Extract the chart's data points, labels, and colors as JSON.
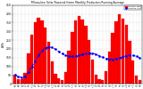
{
  "title": "Milwaukee Solar Powered Home Monthly Production Running Average",
  "ylabel": "kWh",
  "background_color": "#ffffff",
  "bar_color": "#ff0000",
  "line_color": "#0000ff",
  "grid_color": "#bbbbbb",
  "months": [
    "Nov\n'08",
    "Dec\n'08",
    "Jan\n'09",
    "Feb\n'09",
    "Mar\n'09",
    "Apr\n'09",
    "May\n'09",
    "Jun\n'09",
    "Jul\n'09",
    "Aug\n'09",
    "Sep\n'09",
    "Oct\n'09",
    "Nov\n'09",
    "Dec\n'09",
    "Jan\n'10",
    "Feb\n'10",
    "Mar\n'10",
    "Apr\n'10",
    "May\n'10",
    "Jun\n'10",
    "Jul\n'10",
    "Aug\n'10",
    "Sep\n'10",
    "Oct\n'10",
    "Nov\n'10",
    "Dec\n'10",
    "Jan\n'11",
    "Feb\n'11",
    "Mar\n'11",
    "Apr\n'11",
    "May\n'11",
    "Jun\n'11",
    "Jul\n'11",
    "Aug\n'11",
    "Sep\n'11",
    "Oct\n'11",
    "Nov\n'11",
    "Dec\n'11"
  ],
  "bar_values": [
    55,
    28,
    25,
    62,
    175,
    280,
    350,
    380,
    360,
    320,
    240,
    130,
    60,
    30,
    22,
    70,
    190,
    295,
    365,
    390,
    370,
    330,
    250,
    140,
    55,
    28,
    20,
    75,
    185,
    290,
    355,
    400,
    375,
    335,
    245,
    135,
    50,
    22
  ],
  "running_avg": [
    55,
    41,
    38,
    43,
    69,
    99,
    131,
    163,
    190,
    206,
    212,
    208,
    198,
    185,
    173,
    164,
    158,
    157,
    158,
    163,
    168,
    173,
    177,
    176,
    170,
    161,
    152,
    145,
    141,
    141,
    143,
    149,
    155,
    161,
    164,
    163,
    158,
    151
  ],
  "ylim": [
    0,
    450
  ],
  "yticks": [
    0,
    50,
    100,
    150,
    200,
    250,
    300,
    350,
    400,
    450
  ],
  "legend_labels": [
    "Monthly kWh",
    "Running Avg"
  ]
}
